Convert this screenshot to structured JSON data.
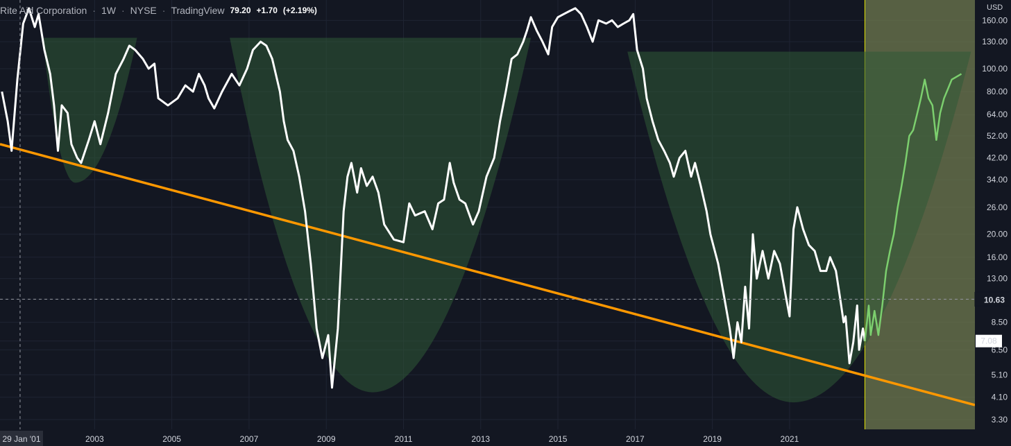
{
  "header": {
    "symbol_name": "Rite Aid Corporation",
    "interval": "1W",
    "exchange": "NYSE",
    "source": "TradingView",
    "last_price": "79.20",
    "change": "+1.70",
    "change_pct": "(+2.19%)"
  },
  "price_axis": {
    "currency": "USD",
    "ticks": [
      "160.00",
      "130.00",
      "100.00",
      "80.00",
      "64.00",
      "52.00",
      "42.00",
      "34.00",
      "26.00",
      "20.00",
      "16.00",
      "13.00",
      "10.63",
      "8.50",
      "7.08",
      "6.50",
      "5.10",
      "4.10",
      "3.30"
    ],
    "current_price_label": "10.63",
    "marker_label": "7.08"
  },
  "time_axis": {
    "crosshair_label": "29 Jan '01",
    "ticks": [
      "2003",
      "2005",
      "2007",
      "2009",
      "2011",
      "2013",
      "2015",
      "2017",
      "2019",
      "2021"
    ]
  },
  "colors": {
    "background": "#131722",
    "price_line": "#ffffff",
    "projection_line": "#7ccf6e",
    "trendline": "#ff9800",
    "cup_fill": "#2f5a36",
    "projection_zone": "#6f7a4f",
    "divider": "#e6e600"
  },
  "chart_data": {
    "type": "line",
    "scale": "log",
    "ylim": [
      3.0,
      195
    ],
    "xlim": [
      2000.55,
      2025.8
    ],
    "series": [
      {
        "values": [
          [
            2000.6,
            80
          ],
          [
            2000.75,
            60
          ],
          [
            2000.85,
            45
          ],
          [
            2001.0,
            90
          ],
          [
            2001.15,
            155
          ],
          [
            2001.3,
            180
          ],
          [
            2001.45,
            150
          ],
          [
            2001.55,
            170
          ],
          [
            2001.7,
            120
          ],
          [
            2001.85,
            95
          ],
          [
            2001.95,
            70
          ],
          [
            2002.05,
            45
          ],
          [
            2002.15,
            70
          ],
          [
            2002.3,
            65
          ],
          [
            2002.4,
            48
          ],
          [
            2002.55,
            42
          ],
          [
            2002.65,
            40
          ],
          [
            2002.85,
            50
          ],
          [
            2003.0,
            60
          ],
          [
            2003.15,
            48
          ],
          [
            2003.35,
            65
          ],
          [
            2003.55,
            95
          ],
          [
            2003.75,
            110
          ],
          [
            2003.9,
            125
          ],
          [
            2004.05,
            120
          ],
          [
            2004.25,
            110
          ],
          [
            2004.4,
            100
          ],
          [
            2004.55,
            105
          ],
          [
            2004.65,
            75
          ],
          [
            2004.9,
            70
          ],
          [
            2005.15,
            75
          ],
          [
            2005.35,
            85
          ],
          [
            2005.55,
            80
          ],
          [
            2005.7,
            95
          ],
          [
            2005.85,
            85
          ],
          [
            2005.95,
            75
          ],
          [
            2006.1,
            68
          ],
          [
            2006.3,
            80
          ],
          [
            2006.55,
            95
          ],
          [
            2006.75,
            85
          ],
          [
            2006.95,
            100
          ],
          [
            2007.1,
            120
          ],
          [
            2007.3,
            130
          ],
          [
            2007.45,
            125
          ],
          [
            2007.6,
            110
          ],
          [
            2007.8,
            80
          ],
          [
            2007.9,
            60
          ],
          [
            2008.0,
            50
          ],
          [
            2008.15,
            45
          ],
          [
            2008.3,
            35
          ],
          [
            2008.45,
            25
          ],
          [
            2008.6,
            15
          ],
          [
            2008.75,
            8
          ],
          [
            2008.9,
            6
          ],
          [
            2009.05,
            7.5
          ],
          [
            2009.15,
            4.5
          ],
          [
            2009.3,
            8
          ],
          [
            2009.45,
            25
          ],
          [
            2009.55,
            35
          ],
          [
            2009.65,
            40
          ],
          [
            2009.8,
            30
          ],
          [
            2009.9,
            38
          ],
          [
            2010.05,
            32
          ],
          [
            2010.2,
            35
          ],
          [
            2010.35,
            30
          ],
          [
            2010.5,
            22
          ],
          [
            2010.75,
            19
          ],
          [
            2011.0,
            18.5
          ],
          [
            2011.15,
            27
          ],
          [
            2011.3,
            24
          ],
          [
            2011.55,
            25
          ],
          [
            2011.75,
            21
          ],
          [
            2011.9,
            27
          ],
          [
            2012.05,
            28
          ],
          [
            2012.2,
            40
          ],
          [
            2012.3,
            33
          ],
          [
            2012.45,
            28
          ],
          [
            2012.6,
            27
          ],
          [
            2012.8,
            22
          ],
          [
            2012.95,
            25
          ],
          [
            2013.15,
            35
          ],
          [
            2013.35,
            42
          ],
          [
            2013.5,
            60
          ],
          [
            2013.65,
            80
          ],
          [
            2013.8,
            110
          ],
          [
            2013.95,
            115
          ],
          [
            2014.1,
            130
          ],
          [
            2014.2,
            145
          ],
          [
            2014.3,
            165
          ],
          [
            2014.45,
            145
          ],
          [
            2014.6,
            130
          ],
          [
            2014.75,
            115
          ],
          [
            2014.85,
            150
          ],
          [
            2015.0,
            165
          ],
          [
            2015.15,
            170
          ],
          [
            2015.3,
            175
          ],
          [
            2015.45,
            180
          ],
          [
            2015.6,
            170
          ],
          [
            2015.75,
            150
          ],
          [
            2015.9,
            130
          ],
          [
            2016.05,
            160
          ],
          [
            2016.25,
            155
          ],
          [
            2016.4,
            160
          ],
          [
            2016.55,
            150
          ],
          [
            2016.7,
            155
          ],
          [
            2016.85,
            160
          ],
          [
            2016.95,
            170
          ],
          [
            2017.05,
            120
          ],
          [
            2017.2,
            100
          ],
          [
            2017.3,
            75
          ],
          [
            2017.45,
            60
          ],
          [
            2017.6,
            50
          ],
          [
            2017.75,
            45
          ],
          [
            2017.9,
            40
          ],
          [
            2018.0,
            35
          ],
          [
            2018.15,
            42
          ],
          [
            2018.3,
            45
          ],
          [
            2018.45,
            35
          ],
          [
            2018.55,
            40
          ],
          [
            2018.7,
            32
          ],
          [
            2018.85,
            25
          ],
          [
            2018.95,
            20
          ],
          [
            2019.15,
            15
          ],
          [
            2019.3,
            11
          ],
          [
            2019.45,
            8
          ],
          [
            2019.55,
            6
          ],
          [
            2019.65,
            8.5
          ],
          [
            2019.75,
            7
          ],
          [
            2019.85,
            12
          ],
          [
            2019.95,
            8
          ],
          [
            2020.05,
            20
          ],
          [
            2020.15,
            13
          ],
          [
            2020.3,
            17
          ],
          [
            2020.45,
            13
          ],
          [
            2020.6,
            17
          ],
          [
            2020.75,
            15
          ],
          [
            2020.9,
            11
          ],
          [
            2021.0,
            9
          ],
          [
            2021.1,
            21
          ],
          [
            2021.2,
            26
          ],
          [
            2021.35,
            21
          ],
          [
            2021.5,
            18
          ],
          [
            2021.65,
            17
          ],
          [
            2021.8,
            14
          ],
          [
            2021.95,
            14
          ],
          [
            2022.05,
            16
          ],
          [
            2022.2,
            14
          ],
          [
            2022.3,
            11
          ],
          [
            2022.4,
            8.5
          ],
          [
            2022.45,
            9
          ],
          [
            2022.55,
            5.7
          ],
          [
            2022.65,
            7
          ],
          [
            2022.75,
            10
          ],
          [
            2022.8,
            6.5
          ],
          [
            2022.9,
            8
          ],
          [
            2022.95,
            7.08
          ]
        ]
      },
      {
        "values": [
          [
            2022.95,
            7.08
          ],
          [
            2023.05,
            10
          ],
          [
            2023.1,
            7.5
          ],
          [
            2023.2,
            9.5
          ],
          [
            2023.3,
            7.5
          ],
          [
            2023.4,
            10
          ],
          [
            2023.5,
            14
          ],
          [
            2023.6,
            17
          ],
          [
            2023.7,
            20
          ],
          [
            2023.8,
            26
          ],
          [
            2023.9,
            32
          ],
          [
            2024.0,
            40
          ],
          [
            2024.1,
            52
          ],
          [
            2024.2,
            55
          ],
          [
            2024.3,
            64
          ],
          [
            2024.4,
            75
          ],
          [
            2024.5,
            90
          ],
          [
            2024.6,
            75
          ],
          [
            2024.7,
            70
          ],
          [
            2024.8,
            50
          ],
          [
            2024.9,
            65
          ],
          [
            2025.0,
            75
          ],
          [
            2025.1,
            82
          ],
          [
            2025.2,
            90
          ],
          [
            2025.3,
            92
          ],
          [
            2025.4,
            94
          ],
          [
            2025.45,
            95
          ]
        ]
      }
    ],
    "trendline": [
      [
        2000.55,
        48
      ],
      [
        2025.8,
        3.8
      ]
    ],
    "cups": [
      {
        "x_left": 2001.65,
        "x_right": 2004.1,
        "x_bottom": 2002.5,
        "rim": 135,
        "bottom": 33
      },
      {
        "x_left": 2006.5,
        "x_right": 2014.3,
        "x_bottom": 2010.2,
        "rim": 135,
        "bottom": 4.3
      },
      {
        "x_left": 2016.8,
        "x_right": 2025.7,
        "x_bottom": 2021.1,
        "rim": 118,
        "bottom": 3.9
      }
    ],
    "projection_zone": {
      "x_start": 2022.95,
      "x_end": 2025.8
    },
    "current_price": 10.63,
    "crosshair_year": 2001.07
  }
}
